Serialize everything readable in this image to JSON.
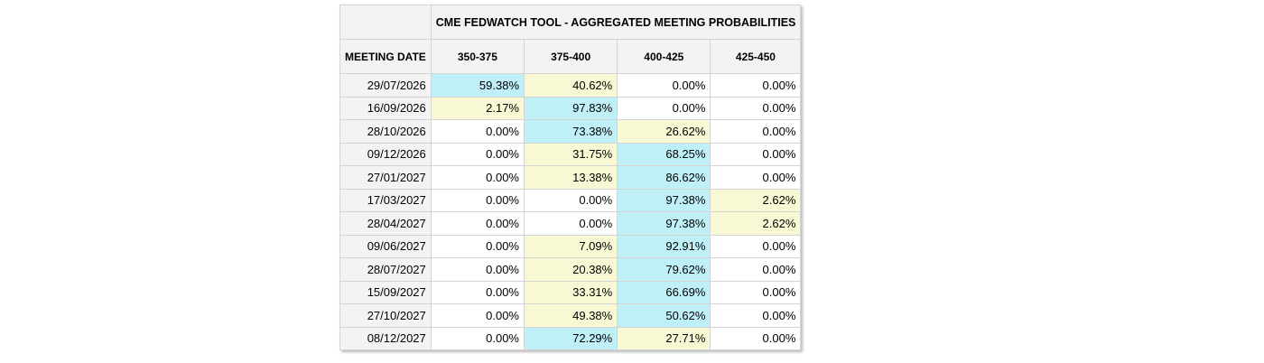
{
  "table": {
    "title": "CME FEDWATCH TOOL - AGGREGATED MEETING PROBABILITIES",
    "date_header": "MEETING DATE",
    "range_headers": [
      "350-375",
      "375-400",
      "400-425",
      "425-450"
    ],
    "colors": {
      "highest_probability": "#bff0f8",
      "second_probability": "#f9f8d4",
      "header_background": "#f3f3f3"
    },
    "rows": [
      {
        "date": "29/07/2026",
        "values": [
          "59.38%",
          "40.62%",
          "0.00%",
          "0.00%"
        ],
        "highlight": [
          "max",
          "second",
          "",
          ""
        ]
      },
      {
        "date": "16/09/2026",
        "values": [
          "2.17%",
          "97.83%",
          "0.00%",
          "0.00%"
        ],
        "highlight": [
          "second",
          "max",
          "",
          ""
        ]
      },
      {
        "date": "28/10/2026",
        "values": [
          "0.00%",
          "73.38%",
          "26.62%",
          "0.00%"
        ],
        "highlight": [
          "",
          "max",
          "second",
          ""
        ]
      },
      {
        "date": "09/12/2026",
        "values": [
          "0.00%",
          "31.75%",
          "68.25%",
          "0.00%"
        ],
        "highlight": [
          "",
          "second",
          "max",
          ""
        ]
      },
      {
        "date": "27/01/2027",
        "values": [
          "0.00%",
          "13.38%",
          "86.62%",
          "0.00%"
        ],
        "highlight": [
          "",
          "second",
          "max",
          ""
        ]
      },
      {
        "date": "17/03/2027",
        "values": [
          "0.00%",
          "0.00%",
          "97.38%",
          "2.62%"
        ],
        "highlight": [
          "",
          "",
          "max",
          "second"
        ]
      },
      {
        "date": "28/04/2027",
        "values": [
          "0.00%",
          "0.00%",
          "97.38%",
          "2.62%"
        ],
        "highlight": [
          "",
          "",
          "max",
          "second"
        ]
      },
      {
        "date": "09/06/2027",
        "values": [
          "0.00%",
          "7.09%",
          "92.91%",
          "0.00%"
        ],
        "highlight": [
          "",
          "second",
          "max",
          ""
        ]
      },
      {
        "date": "28/07/2027",
        "values": [
          "0.00%",
          "20.38%",
          "79.62%",
          "0.00%"
        ],
        "highlight": [
          "",
          "second",
          "max",
          ""
        ]
      },
      {
        "date": "15/09/2027",
        "values": [
          "0.00%",
          "33.31%",
          "66.69%",
          "0.00%"
        ],
        "highlight": [
          "",
          "second",
          "max",
          ""
        ]
      },
      {
        "date": "27/10/2027",
        "values": [
          "0.00%",
          "49.38%",
          "50.62%",
          "0.00%"
        ],
        "highlight": [
          "",
          "second",
          "max",
          ""
        ]
      },
      {
        "date": "08/12/2027",
        "values": [
          "0.00%",
          "72.29%",
          "27.71%",
          "0.00%"
        ],
        "highlight": [
          "",
          "max",
          "second",
          ""
        ]
      }
    ]
  }
}
